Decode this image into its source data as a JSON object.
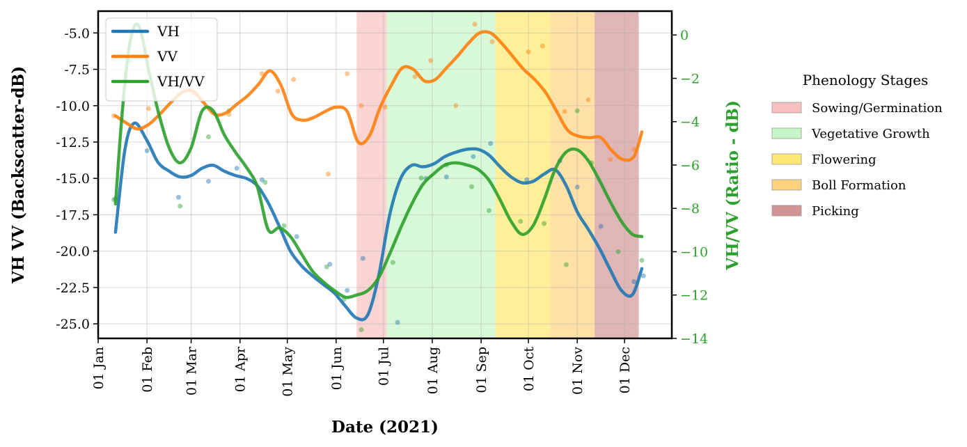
{
  "chart_data": {
    "type": "line",
    "xlabel": "Date (2021)",
    "ylabel": "VH VV (Backscatter-dB)",
    "ylabel_right": "VH/VV (Ratio - dB)",
    "xlim": [
      "2021-01-01",
      "2021-12-31"
    ],
    "ylim": [
      -26.0,
      -3.5
    ],
    "ylim_right": [
      -14,
      1.1
    ],
    "x_ticks": [
      "2021-01-01",
      "2021-02-01",
      "2021-03-01",
      "2021-04-01",
      "2021-05-01",
      "2021-06-01",
      "2021-07-01",
      "2021-08-01",
      "2021-09-01",
      "2021-10-01",
      "2021-11-01",
      "2021-12-01"
    ],
    "x_tick_labels": [
      "01 Jan",
      "01 Feb",
      "01 Mar",
      "01 Apr",
      "01 May",
      "01 Jun",
      "01 Jul",
      "01 Aug",
      "01 Sep",
      "01 Oct",
      "01 Nov",
      "01 Dec"
    ],
    "y_ticks": [
      -5.0,
      -7.5,
      -10.0,
      -12.5,
      -15.0,
      -17.5,
      -20.0,
      -22.5,
      -25.0
    ],
    "y_tick_labels": [
      "-5.0",
      "-7.5",
      "-10.0",
      "-12.5",
      "-15.0",
      "-17.5",
      "-20.0",
      "-22.5",
      "-25.0"
    ],
    "y_right_ticks": [
      0,
      -2,
      -4,
      -6,
      -8,
      -10,
      -12,
      -14
    ],
    "y_right_tick_labels": [
      "0",
      "−2",
      "−4",
      "−6",
      "−8",
      "−10",
      "−12",
      "−14"
    ],
    "grid": true,
    "legend_position": "top-left",
    "series": [
      {
        "name": "VH",
        "color": "#1f77b4",
        "axis": "left",
        "x": [
          "2021-01-12",
          "2021-01-18",
          "2021-01-24",
          "2021-02-01",
          "2021-02-08",
          "2021-02-15",
          "2021-02-22",
          "2021-03-01",
          "2021-03-08",
          "2021-03-15",
          "2021-03-22",
          "2021-03-29",
          "2021-04-05",
          "2021-04-12",
          "2021-04-19",
          "2021-04-26",
          "2021-05-03",
          "2021-05-10",
          "2021-05-17",
          "2021-05-24",
          "2021-05-31",
          "2021-06-07",
          "2021-06-14",
          "2021-06-21",
          "2021-06-28",
          "2021-07-05",
          "2021-07-12",
          "2021-07-19",
          "2021-07-26",
          "2021-08-02",
          "2021-08-09",
          "2021-08-16",
          "2021-08-23",
          "2021-08-30",
          "2021-09-06",
          "2021-09-13",
          "2021-09-20",
          "2021-09-27",
          "2021-10-04",
          "2021-10-11",
          "2021-10-18",
          "2021-10-25",
          "2021-11-01",
          "2021-11-08",
          "2021-11-15",
          "2021-11-22",
          "2021-11-29",
          "2021-12-06",
          "2021-12-12"
        ],
        "values": [
          -18.7,
          -13.0,
          -11.2,
          -12.4,
          -13.9,
          -14.5,
          -14.9,
          -14.8,
          -14.3,
          -14.1,
          -14.5,
          -14.8,
          -15.0,
          -15.5,
          -16.7,
          -18.3,
          -20.0,
          -21.0,
          -21.7,
          -22.3,
          -22.9,
          -23.8,
          -24.6,
          -24.4,
          -21.7,
          -17.5,
          -15.0,
          -14.1,
          -14.2,
          -14.0,
          -13.5,
          -13.2,
          -13.0,
          -13.0,
          -13.4,
          -14.2,
          -14.9,
          -15.3,
          -15.2,
          -14.7,
          -14.4,
          -15.5,
          -17.3,
          -18.5,
          -19.8,
          -21.3,
          -22.7,
          -23.0,
          -21.2
        ],
        "points_x": [
          "2021-01-12",
          "2021-02-01",
          "2021-02-21",
          "2021-03-12",
          "2021-03-30",
          "2021-04-15",
          "2021-05-07",
          "2021-05-28",
          "2021-06-08",
          "2021-06-18",
          "2021-07-10",
          "2021-07-28",
          "2021-08-10",
          "2021-08-27",
          "2021-09-07",
          "2021-09-30",
          "2021-10-21",
          "2021-11-01",
          "2021-11-16",
          "2021-12-07",
          "2021-12-13"
        ],
        "points_y": [
          -16.4,
          -13.1,
          -16.3,
          -15.2,
          -14.3,
          -15.1,
          -19.0,
          -20.9,
          -22.7,
          -20.5,
          -24.9,
          -15.0,
          -14.9,
          -13.5,
          -12.6,
          -15.1,
          -13.8,
          -15.6,
          -18.3,
          -22.1,
          -21.7
        ]
      },
      {
        "name": "VV",
        "color": "#ff7f0e",
        "axis": "left",
        "x": [
          "2021-01-12",
          "2021-01-19",
          "2021-01-26",
          "2021-02-02",
          "2021-02-09",
          "2021-02-16",
          "2021-02-23",
          "2021-03-02",
          "2021-03-09",
          "2021-03-16",
          "2021-03-23",
          "2021-03-30",
          "2021-04-06",
          "2021-04-13",
          "2021-04-20",
          "2021-04-27",
          "2021-05-04",
          "2021-05-11",
          "2021-05-18",
          "2021-05-25",
          "2021-06-01",
          "2021-06-08",
          "2021-06-15",
          "2021-06-22",
          "2021-06-29",
          "2021-07-06",
          "2021-07-13",
          "2021-07-20",
          "2021-07-27",
          "2021-08-03",
          "2021-08-10",
          "2021-08-17",
          "2021-08-24",
          "2021-08-31",
          "2021-09-07",
          "2021-09-14",
          "2021-09-21",
          "2021-09-28",
          "2021-10-05",
          "2021-10-12",
          "2021-10-19",
          "2021-10-26",
          "2021-11-02",
          "2021-11-09",
          "2021-11-16",
          "2021-11-23",
          "2021-11-30",
          "2021-12-07",
          "2021-12-12"
        ],
        "values": [
          -10.7,
          -11.2,
          -11.6,
          -11.3,
          -10.6,
          -9.8,
          -9.1,
          -9.0,
          -9.8,
          -10.6,
          -10.5,
          -9.9,
          -9.3,
          -8.5,
          -7.6,
          -8.6,
          -10.6,
          -11.0,
          -10.8,
          -10.4,
          -10.1,
          -10.4,
          -12.5,
          -12.1,
          -10.1,
          -8.6,
          -7.4,
          -7.5,
          -8.3,
          -8.2,
          -7.4,
          -6.6,
          -5.7,
          -5.0,
          -5.0,
          -5.7,
          -6.6,
          -7.5,
          -8.2,
          -9.1,
          -10.4,
          -11.7,
          -12.1,
          -12.2,
          -12.2,
          -13.1,
          -13.7,
          -13.5,
          -11.8
        ],
        "points_x": [
          "2021-01-11",
          "2021-02-02",
          "2021-03-03",
          "2021-03-25",
          "2021-04-15",
          "2021-04-25",
          "2021-05-05",
          "2021-05-27",
          "2021-06-08",
          "2021-06-17",
          "2021-07-02",
          "2021-07-21",
          "2021-07-31",
          "2021-08-16",
          "2021-08-28",
          "2021-09-08",
          "2021-10-01",
          "2021-10-10",
          "2021-10-24",
          "2021-11-08",
          "2021-11-22",
          "2021-12-07"
        ],
        "points_y": [
          -10.7,
          -10.2,
          -9.1,
          -10.6,
          -7.8,
          -9.0,
          -8.2,
          -14.7,
          -7.8,
          -10.0,
          -10.1,
          -8.0,
          -6.9,
          -10.0,
          -4.4,
          -5.6,
          -6.3,
          -5.9,
          -10.4,
          -9.6,
          -13.7,
          -13.0
        ]
      },
      {
        "name": "VH/VV",
        "color": "#2ca02c",
        "axis": "right",
        "x": [
          "2021-01-12",
          "2021-01-16",
          "2021-01-20",
          "2021-01-24",
          "2021-01-28",
          "2021-02-02",
          "2021-02-08",
          "2021-02-15",
          "2021-02-22",
          "2021-03-01",
          "2021-03-08",
          "2021-03-15",
          "2021-03-22",
          "2021-03-29",
          "2021-04-05",
          "2021-04-12",
          "2021-04-19",
          "2021-04-26",
          "2021-05-03",
          "2021-05-10",
          "2021-05-17",
          "2021-05-24",
          "2021-05-31",
          "2021-06-07",
          "2021-06-14",
          "2021-06-21",
          "2021-06-28",
          "2021-07-05",
          "2021-07-12",
          "2021-07-19",
          "2021-07-26",
          "2021-08-02",
          "2021-08-09",
          "2021-08-16",
          "2021-08-23",
          "2021-08-30",
          "2021-09-06",
          "2021-09-13",
          "2021-09-20",
          "2021-09-27",
          "2021-10-04",
          "2021-10-11",
          "2021-10-18",
          "2021-10-25",
          "2021-11-01",
          "2021-11-08",
          "2021-11-15",
          "2021-11-22",
          "2021-11-29",
          "2021-12-06",
          "2021-12-12"
        ],
        "values": [
          -7.8,
          -3.8,
          -0.9,
          0.4,
          0.2,
          -1.6,
          -3.5,
          -5.2,
          -5.9,
          -5.2,
          -3.5,
          -3.5,
          -4.6,
          -5.4,
          -6.1,
          -7.0,
          -9.0,
          -8.9,
          -9.3,
          -10.1,
          -10.9,
          -11.4,
          -11.8,
          -12.1,
          -12.0,
          -11.8,
          -11.2,
          -10.1,
          -8.9,
          -7.8,
          -6.9,
          -6.4,
          -6.0,
          -5.9,
          -6.0,
          -6.2,
          -6.7,
          -7.6,
          -8.6,
          -9.2,
          -8.8,
          -7.6,
          -6.2,
          -5.4,
          -5.3,
          -5.8,
          -6.7,
          -7.7,
          -8.6,
          -9.2,
          -9.3
        ],
        "points_x": [
          "2021-01-11",
          "2021-01-21",
          "2021-02-22",
          "2021-03-12",
          "2021-03-25",
          "2021-04-17",
          "2021-04-29",
          "2021-05-26",
          "2021-06-06",
          "2021-06-17",
          "2021-07-07",
          "2021-07-25",
          "2021-08-10",
          "2021-08-26",
          "2021-09-06",
          "2021-09-26",
          "2021-10-11",
          "2021-10-25",
          "2021-11-01",
          "2021-11-10",
          "2021-11-27",
          "2021-12-12"
        ],
        "points_y": [
          -7.6,
          -1.2,
          -7.9,
          -4.7,
          -3.5,
          -6.8,
          -8.8,
          -10.7,
          -12.2,
          -13.6,
          -10.5,
          -6.6,
          -6.0,
          -7.0,
          -8.1,
          -8.6,
          -8.7,
          -10.6,
          -3.5,
          -5.9,
          -10.0,
          -10.4
        ]
      }
    ],
    "phenology_stages": [
      {
        "name": "Sowing/Germination",
        "start": "2021-06-14",
        "end": "2021-07-03",
        "color": "#f08080",
        "opacity": 0.35
      },
      {
        "name": "Vegetative Growth",
        "start": "2021-07-03",
        "end": "2021-09-10",
        "color": "#90ee90",
        "opacity": 0.35
      },
      {
        "name": "Flowering",
        "start": "2021-09-10",
        "end": "2021-10-15",
        "color": "#ffd700",
        "opacity": 0.4
      },
      {
        "name": "Boll Formation",
        "start": "2021-10-15",
        "end": "2021-11-12",
        "color": "#ffa500",
        "opacity": 0.35
      },
      {
        "name": "Picking",
        "start": "2021-11-12",
        "end": "2021-12-10",
        "color": "#a52a2a",
        "opacity": 0.35
      }
    ],
    "stage_legend_title": "Phenology Stages"
  }
}
